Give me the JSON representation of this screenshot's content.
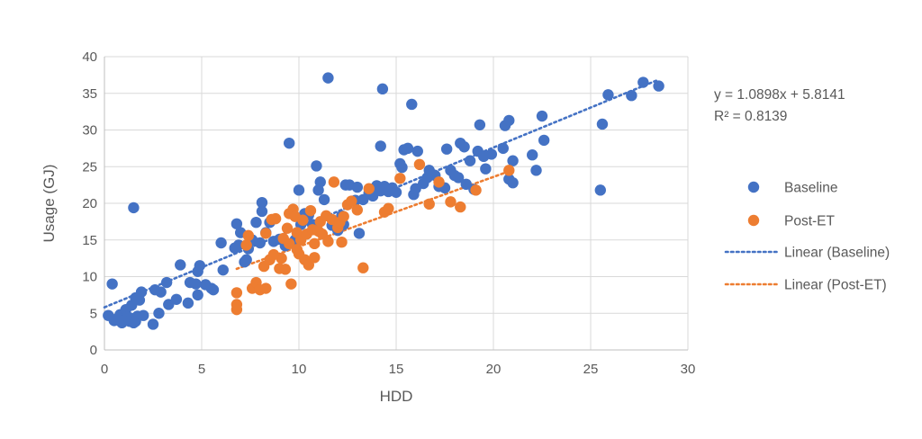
{
  "chart_data": {
    "type": "scatter",
    "title": "",
    "xlabel": "HDD",
    "ylabel": "Usage (GJ)",
    "xlim": [
      0,
      30
    ],
    "ylim": [
      0,
      40
    ],
    "x_ticks": [
      "0",
      "5",
      "10",
      "15",
      "20",
      "25",
      "30"
    ],
    "y_ticks": [
      "0",
      "5",
      "10",
      "15",
      "20",
      "25",
      "30",
      "35",
      "40"
    ],
    "x_tick_values": [
      0,
      5,
      10,
      15,
      20,
      25,
      30
    ],
    "y_tick_values": [
      0,
      5,
      10,
      15,
      20,
      25,
      30,
      35,
      40
    ],
    "grid": "vertical and horizontal",
    "legend_position": "right",
    "colors": {
      "baseline": "#4472C4",
      "post_et": "#ED7D31",
      "grid": "#D9D9D9",
      "text": "#595959"
    },
    "series": [
      {
        "name": "Baseline",
        "kind": "points",
        "points": [
          [
            0.2,
            4.7
          ],
          [
            0.5,
            4.0
          ],
          [
            0.6,
            4.2
          ],
          [
            0.8,
            4.8
          ],
          [
            0.9,
            3.7
          ],
          [
            1.0,
            5.0
          ],
          [
            1.0,
            4.0
          ],
          [
            1.1,
            5.5
          ],
          [
            1.2,
            4.5
          ],
          [
            1.3,
            3.9
          ],
          [
            1.4,
            4.3
          ],
          [
            1.5,
            3.7
          ],
          [
            1.6,
            3.9
          ],
          [
            1.7,
            4.6
          ],
          [
            1.4,
            6.1
          ],
          [
            1.6,
            7.1
          ],
          [
            1.9,
            7.9
          ],
          [
            2.0,
            4.7
          ],
          [
            1.8,
            6.8
          ],
          [
            1.5,
            19.4
          ],
          [
            0.4,
            9.0
          ],
          [
            2.5,
            3.5
          ],
          [
            2.6,
            8.2
          ],
          [
            2.9,
            7.9
          ],
          [
            2.8,
            5.0
          ],
          [
            3.2,
            9.2
          ],
          [
            3.3,
            6.2
          ],
          [
            3.7,
            6.9
          ],
          [
            3.9,
            11.6
          ],
          [
            4.3,
            6.4
          ],
          [
            4.4,
            9.2
          ],
          [
            4.7,
            9.0
          ],
          [
            4.8,
            10.7
          ],
          [
            4.9,
            11.5
          ],
          [
            4.8,
            7.5
          ],
          [
            5.2,
            8.9
          ],
          [
            5.5,
            8.4
          ],
          [
            5.6,
            8.2
          ],
          [
            6.0,
            14.6
          ],
          [
            6.1,
            10.9
          ],
          [
            6.7,
            13.9
          ],
          [
            6.8,
            17.2
          ],
          [
            6.9,
            14.3
          ],
          [
            7.0,
            16.0
          ],
          [
            7.2,
            12.0
          ],
          [
            7.3,
            12.3
          ],
          [
            7.4,
            13.8
          ],
          [
            7.6,
            15.0
          ],
          [
            7.8,
            17.4
          ],
          [
            8.0,
            14.6
          ],
          [
            8.1,
            18.9
          ],
          [
            8.1,
            20.1
          ],
          [
            8.3,
            16.0
          ],
          [
            8.5,
            17.4
          ],
          [
            8.7,
            14.8
          ],
          [
            9.0,
            15.1
          ],
          [
            9.3,
            14.2
          ],
          [
            9.5,
            28.2
          ],
          [
            9.8,
            15.0
          ],
          [
            10.0,
            21.8
          ],
          [
            10.1,
            17.1
          ],
          [
            10.3,
            18.6
          ],
          [
            10.5,
            18.4
          ],
          [
            10.7,
            17.1
          ],
          [
            10.9,
            25.1
          ],
          [
            11.0,
            21.8
          ],
          [
            11.1,
            22.9
          ],
          [
            11.3,
            20.5
          ],
          [
            11.5,
            37.1
          ],
          [
            11.7,
            17.0
          ],
          [
            12.0,
            16.3
          ],
          [
            12.2,
            18.3
          ],
          [
            12.4,
            22.5
          ],
          [
            12.6,
            22.5
          ],
          [
            12.9,
            20.4
          ],
          [
            13.0,
            22.2
          ],
          [
            13.1,
            15.9
          ],
          [
            13.3,
            20.5
          ],
          [
            13.8,
            21.0
          ],
          [
            14.0,
            22.4
          ],
          [
            14.2,
            21.7
          ],
          [
            14.3,
            35.6
          ],
          [
            14.4,
            22.3
          ],
          [
            14.6,
            21.6
          ],
          [
            14.8,
            22.1
          ],
          [
            14.2,
            27.8
          ],
          [
            15.0,
            21.5
          ],
          [
            15.2,
            25.4
          ],
          [
            15.4,
            27.3
          ],
          [
            15.6,
            27.5
          ],
          [
            15.8,
            33.5
          ],
          [
            15.9,
            21.2
          ],
          [
            16.0,
            22.0
          ],
          [
            16.1,
            27.1
          ],
          [
            16.4,
            22.7
          ],
          [
            16.6,
            23.5
          ],
          [
            16.7,
            24.5
          ],
          [
            17.0,
            23.8
          ],
          [
            17.2,
            22.3
          ],
          [
            17.5,
            22.1
          ],
          [
            17.6,
            27.4
          ],
          [
            17.8,
            24.5
          ],
          [
            18.0,
            23.8
          ],
          [
            18.3,
            28.2
          ],
          [
            18.5,
            27.7
          ],
          [
            18.6,
            22.6
          ],
          [
            18.8,
            25.8
          ],
          [
            19.0,
            21.9
          ],
          [
            19.2,
            27.1
          ],
          [
            19.3,
            30.7
          ],
          [
            19.5,
            26.4
          ],
          [
            19.6,
            24.7
          ],
          [
            19.9,
            26.7
          ],
          [
            20.5,
            27.5
          ],
          [
            20.6,
            30.6
          ],
          [
            20.8,
            31.3
          ],
          [
            20.8,
            23.3
          ],
          [
            21.0,
            22.8
          ],
          [
            21.0,
            25.8
          ],
          [
            22.0,
            26.6
          ],
          [
            22.2,
            24.5
          ],
          [
            22.5,
            31.9
          ],
          [
            22.6,
            28.6
          ],
          [
            25.5,
            21.8
          ],
          [
            25.6,
            30.8
          ],
          [
            25.9,
            34.8
          ],
          [
            27.1,
            34.7
          ],
          [
            27.7,
            36.5
          ],
          [
            28.5,
            36.0
          ],
          [
            12.3,
            17.1
          ],
          [
            13.6,
            21.4
          ],
          [
            15.3,
            24.9
          ],
          [
            16.9,
            23.9
          ],
          [
            18.2,
            23.5
          ]
        ]
      },
      {
        "name": "Post-ET",
        "kind": "points",
        "points": [
          [
            6.8,
            7.8
          ],
          [
            6.8,
            6.2
          ],
          [
            6.8,
            5.5
          ],
          [
            7.3,
            14.3
          ],
          [
            7.6,
            8.4
          ],
          [
            7.8,
            9.2
          ],
          [
            8.0,
            8.2
          ],
          [
            8.2,
            11.4
          ],
          [
            8.3,
            8.4
          ],
          [
            8.3,
            15.9
          ],
          [
            8.5,
            12.3
          ],
          [
            8.6,
            17.8
          ],
          [
            8.8,
            17.9
          ],
          [
            9.0,
            11.1
          ],
          [
            9.1,
            12.5
          ],
          [
            9.2,
            15.2
          ],
          [
            9.3,
            11.0
          ],
          [
            9.4,
            16.6
          ],
          [
            9.5,
            18.6
          ],
          [
            9.5,
            14.5
          ],
          [
            9.6,
            9.0
          ],
          [
            9.7,
            19.2
          ],
          [
            9.8,
            18.2
          ],
          [
            9.9,
            16.0
          ],
          [
            10.0,
            13.1
          ],
          [
            10.1,
            15.0
          ],
          [
            10.2,
            17.7
          ],
          [
            10.3,
            12.3
          ],
          [
            10.4,
            15.8
          ],
          [
            10.5,
            11.6
          ],
          [
            10.6,
            19.0
          ],
          [
            10.7,
            16.4
          ],
          [
            10.8,
            12.6
          ],
          [
            11.0,
            16.2
          ],
          [
            11.1,
            17.5
          ],
          [
            11.2,
            15.8
          ],
          [
            11.4,
            18.3
          ],
          [
            11.5,
            14.8
          ],
          [
            11.7,
            17.8
          ],
          [
            11.8,
            22.9
          ],
          [
            12.0,
            16.7
          ],
          [
            12.1,
            17.4
          ],
          [
            12.3,
            18.2
          ],
          [
            12.5,
            19.8
          ],
          [
            12.7,
            20.3
          ],
          [
            13.0,
            19.1
          ],
          [
            13.3,
            11.2
          ],
          [
            13.6,
            22.0
          ],
          [
            14.4,
            18.8
          ],
          [
            14.6,
            19.3
          ],
          [
            15.2,
            23.4
          ],
          [
            16.2,
            25.3
          ],
          [
            16.7,
            19.9
          ],
          [
            17.2,
            22.9
          ],
          [
            17.8,
            20.2
          ],
          [
            18.3,
            19.5
          ],
          [
            19.1,
            21.8
          ],
          [
            20.8,
            24.5
          ],
          [
            8.7,
            13.0
          ],
          [
            9.9,
            13.7
          ],
          [
            10.8,
            14.5
          ],
          [
            12.2,
            14.7
          ],
          [
            7.4,
            15.6
          ]
        ]
      }
    ],
    "trendlines": [
      {
        "name": "Linear (Baseline)",
        "slope": 1.0898,
        "intercept": 5.8141,
        "x_range": [
          0,
          28.5
        ],
        "color": "#4472C4"
      },
      {
        "name": "Linear (Post-ET)",
        "slope": 0.95,
        "intercept": 4.6,
        "x_range": [
          6.8,
          20.8
        ],
        "color": "#ED7D31"
      }
    ],
    "annotation": {
      "line1": "y = 1.0898x + 5.8141",
      "line2": "R² = 0.8139"
    },
    "legend": [
      {
        "label": "Baseline",
        "kind": "marker",
        "color": "#4472C4"
      },
      {
        "label": "Post-ET",
        "kind": "marker",
        "color": "#ED7D31"
      },
      {
        "label": "Linear (Baseline)",
        "kind": "dotted-line",
        "color": "#4472C4"
      },
      {
        "label": "Linear (Post-ET)",
        "kind": "dotted-line",
        "color": "#ED7D31"
      }
    ]
  }
}
